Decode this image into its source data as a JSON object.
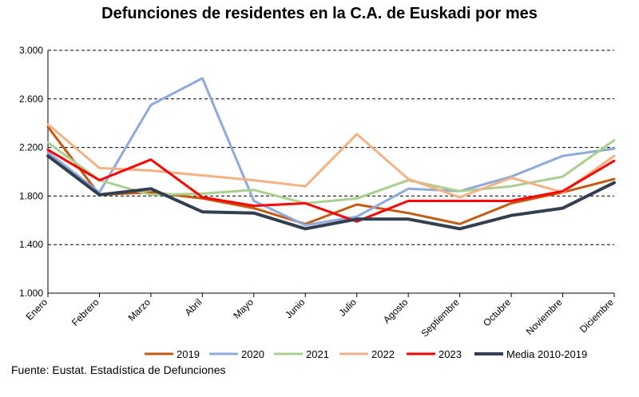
{
  "chart_data": {
    "type": "line",
    "title": "Defunciones de residentes en la C.A. de Euskadi por mes",
    "categories": [
      "Enero",
      "Febrero",
      "Marzo",
      "Abril",
      "Mayo",
      "Junio",
      "Julio",
      "Agosto",
      "Septiembre",
      "Octubre",
      "Noviembre",
      "Diciembre"
    ],
    "ylim": [
      1000,
      3000
    ],
    "yticks": [
      1000,
      1400,
      1800,
      2200,
      2600,
      3000
    ],
    "ytick_labels": [
      "1.000",
      "1.400",
      "1.800",
      "2.200",
      "2.600",
      "3.000"
    ],
    "grid": "horizontal-dashed",
    "legend_position": "bottom",
    "series": [
      {
        "name": "2019",
        "color": "#C55A11",
        "values": [
          2370,
          1810,
          1830,
          1780,
          1700,
          1570,
          1730,
          1660,
          1570,
          1740,
          1830,
          1940
        ]
      },
      {
        "name": "2020",
        "color": "#8EA9DB",
        "values": [
          2160,
          1830,
          2550,
          2770,
          1760,
          1560,
          1630,
          1860,
          1840,
          1960,
          2130,
          2190
        ]
      },
      {
        "name": "2021",
        "color": "#A9D08E",
        "values": [
          2240,
          1930,
          1810,
          1820,
          1850,
          1740,
          1780,
          1930,
          1840,
          1880,
          1960,
          2260
        ]
      },
      {
        "name": "2022",
        "color": "#F4B183",
        "values": [
          2390,
          2030,
          2010,
          1970,
          1930,
          1880,
          2310,
          1940,
          1790,
          1950,
          1830,
          2130
        ]
      },
      {
        "name": "2023",
        "color": "#FF0000",
        "values": [
          2180,
          1930,
          2100,
          1790,
          1720,
          1740,
          1590,
          1760,
          1760,
          1760,
          1840,
          2090
        ]
      },
      {
        "name": "Media 2010-2019",
        "color": "#323F4F",
        "values": [
          2130,
          1810,
          1860,
          1670,
          1660,
          1530,
          1610,
          1610,
          1530,
          1640,
          1700,
          1910
        ]
      }
    ]
  },
  "source": "Fuente: Eustat. Estadística de Defunciones"
}
